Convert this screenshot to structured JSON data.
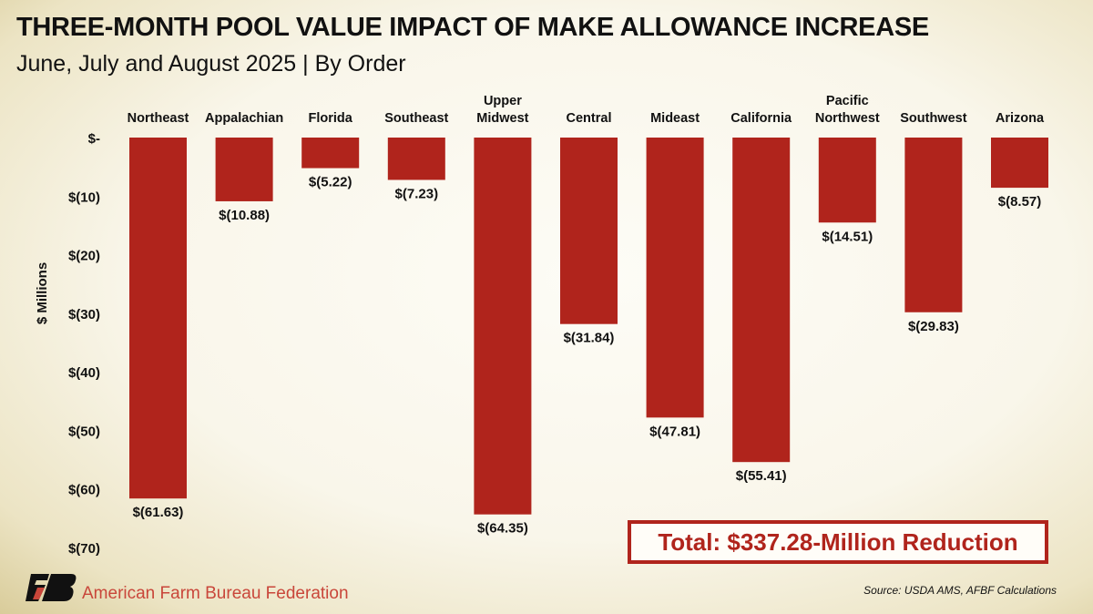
{
  "title": "THREE-MONTH POOL VALUE IMPACT OF MAKE ALLOWANCE INCREASE",
  "subtitle": "June, July and August 2025 | By Order",
  "chart_data": {
    "type": "bar",
    "title": "THREE-MONTH POOL VALUE IMPACT OF MAKE ALLOWANCE INCREASE",
    "subtitle": "June, July and August 2025 | By Order",
    "ylabel": "$ Millions",
    "xlabel": "",
    "categories": [
      "Northeast",
      "Appalachian",
      "Florida",
      "Southeast",
      "Upper Midwest",
      "Central",
      "Mideast",
      "California",
      "Pacific Northwest",
      "Southwest",
      "Arizona"
    ],
    "category_lines": [
      [
        "Northeast"
      ],
      [
        "Appalachian"
      ],
      [
        "Florida"
      ],
      [
        "Southeast"
      ],
      [
        "Upper",
        "Midwest"
      ],
      [
        "Central"
      ],
      [
        "Mideast"
      ],
      [
        "California"
      ],
      [
        "Pacific",
        "Northwest"
      ],
      [
        "Southwest"
      ],
      [
        "Arizona"
      ]
    ],
    "values": [
      -61.63,
      -10.88,
      -5.22,
      -7.23,
      -64.35,
      -31.84,
      -47.81,
      -55.41,
      -14.51,
      -29.83,
      -8.57
    ],
    "data_labels": [
      "$(61.63)",
      "$(10.88)",
      "$(5.22)",
      "$(7.23)",
      "$(64.35)",
      "$(31.84)",
      "$(47.81)",
      "$(55.41)",
      "$(14.51)",
      "$(29.83)",
      "$(8.57)"
    ],
    "ylim": [
      -70,
      0
    ],
    "yticks": [
      0,
      -10,
      -20,
      -30,
      -40,
      -50,
      -60,
      -70
    ],
    "ytick_labels": [
      "$-",
      "$(10)",
      "$(20)",
      "$(30)",
      "$(40)",
      "$(50)",
      "$(60)",
      "$(70)"
    ],
    "grid": false,
    "bar_color": "#b0241c"
  },
  "annotation": "Total: $337.28-Million Reduction",
  "source": "Source: USDA AMS, AFBF Calculations",
  "org": "American Farm Bureau Federation",
  "logo_text": "FB"
}
